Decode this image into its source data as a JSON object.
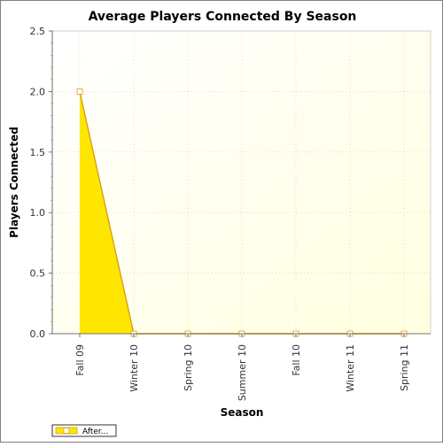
{
  "chart_data": {
    "type": "area",
    "title": "Average Players Connected By Season",
    "xlabel": "Season",
    "ylabel": "Players Connected",
    "categories": [
      "Fall 09",
      "Winter 10",
      "Spring 10",
      "Summer 10",
      "Fall 10",
      "Winter 11",
      "Spring 11"
    ],
    "series": [
      {
        "name": "After...",
        "values": [
          2.0,
          0.0,
          0.0,
          0.0,
          0.0,
          0.0,
          0.0
        ],
        "color": "#ffe600",
        "line_color": "#d4a017"
      }
    ],
    "ylim": [
      0,
      2.5
    ],
    "yticks": [
      "0.0",
      "0.5",
      "1.0",
      "1.5",
      "2.0",
      "2.5"
    ],
    "grid": true,
    "legend_position": "bottom-left",
    "plot_background": [
      "#ffffff",
      "#ffffe0"
    ]
  }
}
